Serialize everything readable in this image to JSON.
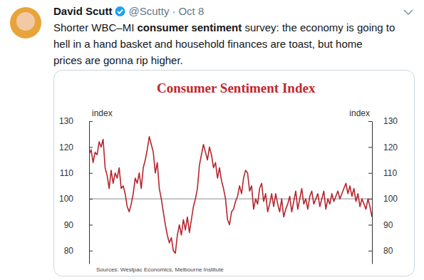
{
  "tweet": {
    "author": "David Scutt",
    "handle": "@Scutty",
    "separator": "·",
    "date": "Oct 8",
    "text_lines": [
      [
        {
          "text": "Shorter WBC–MI "
        },
        {
          "text": "consumer sentiment",
          "bold": true
        },
        {
          "text": " survey: the economy is going to"
        }
      ],
      [
        {
          "text": "hell in a hand basket and household finances are toast, but home"
        }
      ],
      [
        {
          "text": "prices are gonna rip higher."
        }
      ]
    ]
  },
  "chart_data": {
    "type": "line",
    "title": "Consumer Sentiment Index",
    "y_label": "index",
    "y2_label": "index",
    "source": "Sources: Westpac Economics, Melbourne Institute",
    "color": "#b5262e",
    "categories": [
      null,
      null,
      null,
      null,
      null,
      null,
      null,
      null,
      null,
      null,
      null,
      null,
      null,
      null,
      null,
      null,
      null,
      null,
      null,
      null,
      null,
      null,
      null,
      null,
      null,
      null,
      null,
      null,
      null,
      null,
      null,
      null,
      null,
      null,
      null,
      null,
      null,
      null,
      null,
      null,
      null,
      null,
      null,
      null,
      null,
      null,
      null,
      null,
      null,
      null,
      null,
      null,
      null,
      null,
      null,
      null,
      null,
      null,
      null,
      null,
      null,
      null,
      null,
      null,
      null,
      null,
      null,
      null,
      null,
      null,
      null,
      null,
      null,
      null,
      null,
      null,
      null,
      null,
      null,
      null,
      null,
      null,
      null,
      null,
      null,
      null,
      null,
      null,
      null,
      null,
      null,
      null,
      null,
      null,
      null,
      null,
      null,
      null,
      null,
      null,
      null,
      null,
      null,
      null,
      null,
      null,
      null,
      null,
      null,
      null,
      null,
      null,
      null,
      null,
      null,
      null,
      null,
      null,
      null,
      null,
      null,
      null,
      null,
      null,
      null,
      null,
      null,
      null,
      null,
      null,
      null,
      null,
      null,
      null,
      null,
      null,
      null,
      null,
      null,
      null,
      null,
      null
    ],
    "values": [
      117,
      119,
      114,
      118,
      117,
      122,
      120,
      123,
      112,
      109,
      104,
      111,
      106,
      110,
      108,
      112,
      104,
      105,
      102,
      97,
      95,
      98,
      102,
      108,
      106,
      110,
      104,
      112,
      115,
      119,
      124,
      121,
      118,
      110,
      114,
      104,
      100,
      95,
      90,
      86,
      83,
      85,
      80,
      79,
      86,
      90,
      86,
      92,
      88,
      93,
      87,
      92,
      97,
      100,
      104,
      113,
      117,
      121,
      118,
      115,
      120,
      117,
      112,
      114,
      108,
      112,
      107,
      104,
      100,
      92,
      90,
      95,
      96,
      99,
      101,
      105,
      102,
      108,
      111,
      110,
      103,
      105,
      96,
      100,
      98,
      104,
      106,
      99,
      102,
      95,
      98,
      102,
      97,
      102,
      98,
      95,
      100,
      93,
      96,
      98,
      101,
      95,
      99,
      103,
      96,
      100,
      104,
      98,
      100,
      96,
      101,
      103,
      98,
      100,
      102,
      97,
      100,
      103,
      96,
      100,
      98,
      102,
      99,
      101,
      103,
      100,
      102,
      104,
      106,
      102,
      105,
      101,
      104,
      99,
      102,
      97,
      100,
      98,
      96,
      100,
      97,
      93
    ],
    "ylim": [
      75,
      130
    ],
    "yticks": [
      80,
      90,
      100,
      110,
      120,
      130
    ],
    "y2lim": [
      75,
      130
    ],
    "y2ticks": [
      80,
      90,
      100,
      110,
      120,
      130
    ],
    "reference_lines": [
      100
    ]
  }
}
